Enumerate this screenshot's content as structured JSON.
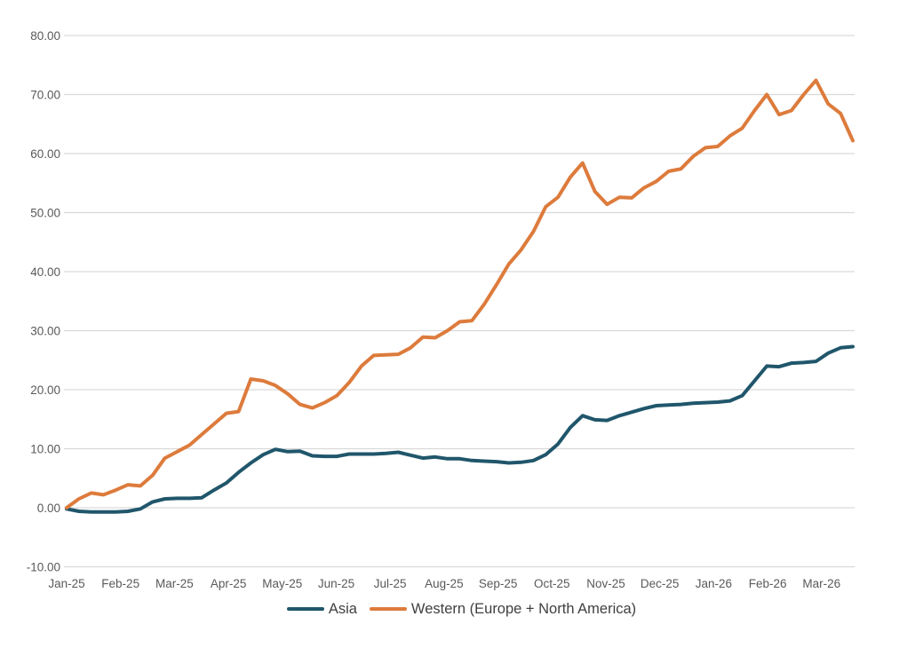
{
  "chart_data": {
    "type": "line",
    "title": "",
    "grid": "horizontal",
    "legend_position": "bottom",
    "x_unit": "weekly points, Jan 2025 - late Mar 2026",
    "x_axis": {
      "tick_labels": [
        "Jan-25",
        "Feb-25",
        "Mar-25",
        "Apr-25",
        "May-25",
        "Jun-25",
        "Jul-25",
        "Aug-25",
        "Sep-25",
        "Oct-25",
        "Nov-25",
        "Dec-25",
        "Jan-26",
        "Feb-26",
        "Mar-26"
      ]
    },
    "y_axis": {
      "min": -10,
      "max": 80,
      "step": 10,
      "tick_labels": [
        "80.00",
        "70.00",
        "60.00",
        "50.00",
        "40.00",
        "30.00",
        "20.00",
        "10.00",
        "0.00",
        "-10.00"
      ]
    },
    "series": [
      {
        "name": "Asia",
        "color": "#20566b",
        "values": [
          -0.2,
          -0.6,
          -0.7,
          -0.7,
          -0.7,
          -0.6,
          -0.2,
          1.0,
          1.5,
          1.6,
          1.6,
          1.7,
          3.0,
          4.2,
          6.0,
          7.6,
          9.0,
          9.9,
          9.5,
          9.6,
          8.8,
          8.7,
          8.7,
          9.1,
          9.1,
          9.1,
          9.2,
          9.4,
          8.9,
          8.4,
          8.6,
          8.3,
          8.3,
          8.0,
          7.9,
          7.8,
          7.6,
          7.7,
          8.0,
          9.0,
          10.8,
          13.6,
          15.6,
          14.9,
          14.8,
          15.6,
          16.2,
          16.8,
          17.3,
          17.4,
          17.5,
          17.7,
          17.8,
          17.9,
          18.1,
          19.0,
          21.5,
          24.0,
          23.9,
          24.5,
          24.6,
          24.8,
          26.2,
          27.1,
          27.3
        ]
      },
      {
        "name": "Western (Europe + North America)",
        "color": "#dd7b3c",
        "values": [
          0.0,
          1.5,
          2.5,
          2.2,
          3.0,
          3.9,
          3.7,
          5.5,
          8.4,
          9.5,
          10.6,
          12.4,
          14.2,
          16.0,
          16.3,
          21.8,
          21.5,
          20.7,
          19.3,
          17.5,
          16.9,
          17.8,
          19.0,
          21.2,
          24.0,
          25.8,
          25.9,
          26.0,
          27.1,
          28.9,
          28.8,
          30.0,
          31.5,
          31.7,
          34.5,
          37.8,
          41.3,
          43.7,
          46.8,
          51.0,
          52.6,
          56.0,
          58.4,
          53.6,
          51.4,
          52.6,
          52.5,
          54.2,
          55.3,
          57.0,
          57.4,
          59.5,
          61.0,
          61.2,
          63.0,
          64.3,
          67.3,
          70.0,
          66.6,
          67.3,
          70.0,
          72.4,
          68.4,
          66.8,
          62.2
        ]
      }
    ],
    "style": {
      "grid_color": "#d9d9d9",
      "axis_label_color": "#595959",
      "legend_text_color": "#404040",
      "background": "#ffffff"
    }
  }
}
